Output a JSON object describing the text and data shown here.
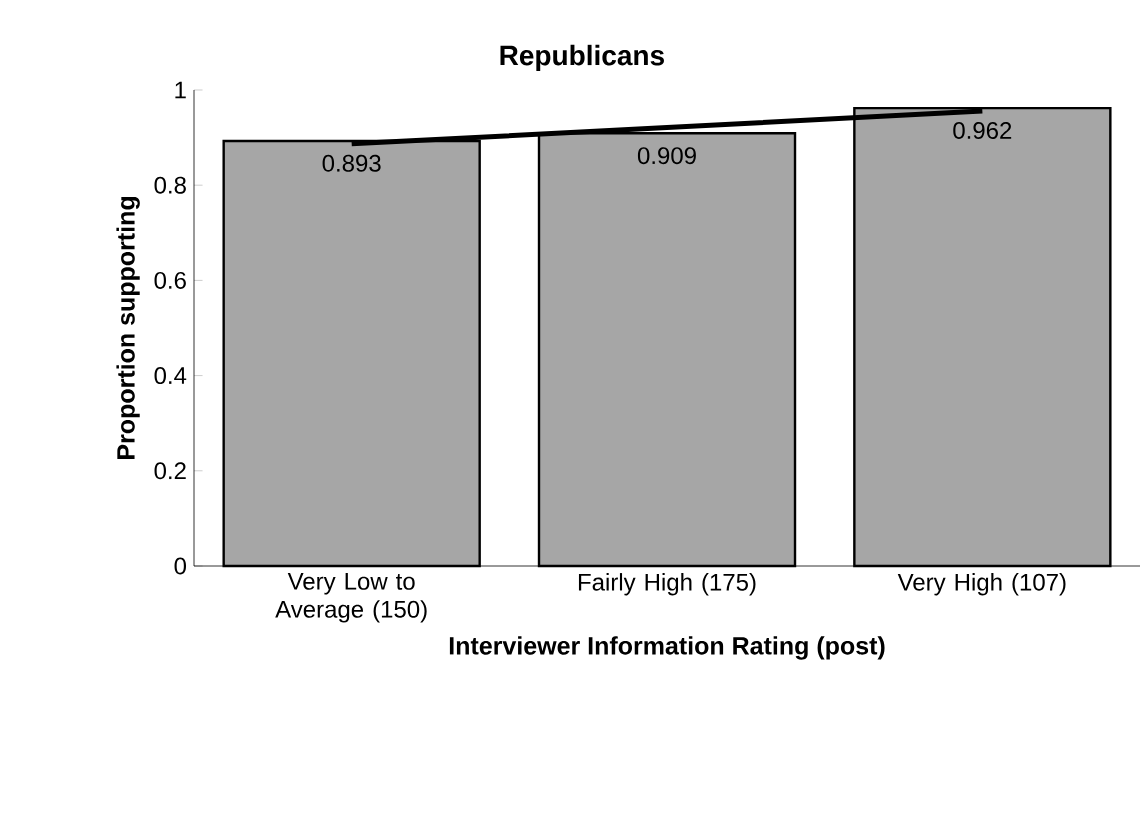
{
  "chart_data": {
    "type": "bar",
    "title": "Republicans",
    "xlabel": "Interviewer Information Rating (post)",
    "ylabel": "Proportion supporting",
    "categories": [
      "Very Low to Average (150)",
      "Fairly High (175)",
      "Very High (107)"
    ],
    "series": [
      {
        "color": "#a6a6a6",
        "values": [
          0.893,
          0.909,
          0.962
        ],
        "value_labels": [
          "0.893",
          "0.909",
          "0.962"
        ]
      },
      {
        "type": "line",
        "color": "#000000",
        "values": [
          0.887,
          0.921,
          0.956
        ]
      }
    ],
    "ylim": [
      0,
      1
    ],
    "yticks": [
      0,
      0.2,
      0.4,
      0.6,
      0.8,
      1
    ]
  }
}
